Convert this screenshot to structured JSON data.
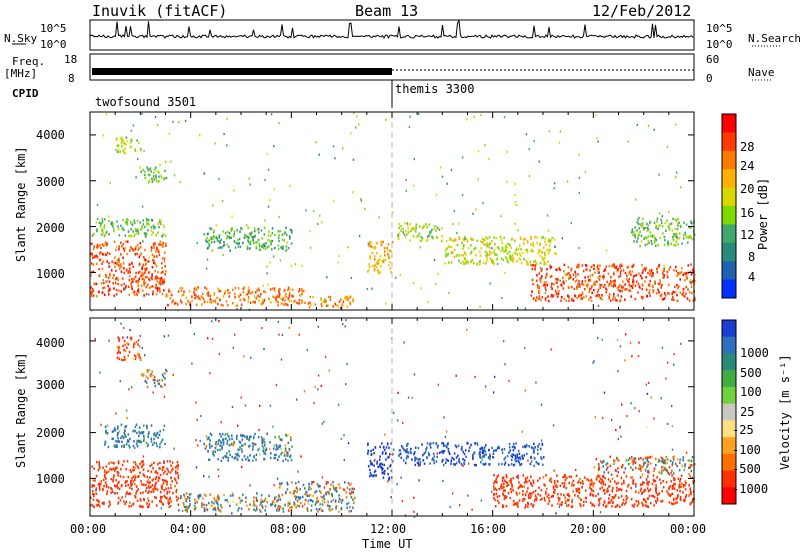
{
  "header": {
    "station": "Inuvik (fitACF)",
    "beam": "Beam 13",
    "date": "12/Feb/2012"
  },
  "panels": {
    "nsky_label": "N.Sky",
    "nsearch_label": "N.Search",
    "nsky_ticks": [
      "10^5",
      "10^0"
    ],
    "nsearch_ticks": [
      "10^5",
      "10^0"
    ],
    "freq_label_1": "Freq.",
    "freq_label_2": "[MHz]",
    "freq_ticks": [
      "18",
      "8"
    ],
    "nave_label": "Nave",
    "nave_ticks": [
      "60",
      "0"
    ],
    "cpid_label": "CPID",
    "cpid_segments": [
      "twofsound 3501",
      "themis 3300"
    ]
  },
  "power_colorbar": {
    "label": "Power [dB]",
    "ticks": [
      "28",
      "24",
      "20",
      "16",
      "12",
      "8",
      "4"
    ],
    "colors": [
      "#ff0000",
      "#ff3a00",
      "#ff7a00",
      "#ffb000",
      "#d8d800",
      "#7fd800",
      "#3fa86a",
      "#2a8a7a",
      "#2060b0",
      "#0030ff"
    ]
  },
  "velocity_colorbar": {
    "label": "Velocity [m s⁻¹]",
    "ticks": [
      "1000",
      "500",
      "100",
      "25",
      "-25",
      "-100",
      "-500",
      "-1000"
    ],
    "colors": [
      "#1a3fd0",
      "#2f6fbf",
      "#2a8a7a",
      "#3fae3f",
      "#6fd040",
      "#c8c8c0",
      "#ffe080",
      "#ffa020",
      "#ff7000",
      "#ff3000",
      "#ff0000"
    ]
  },
  "chart_data": {
    "type": "heatmap",
    "title": "Inuvik (fitACF)  Beam 13  12/Feb/2012",
    "xlabel": "Time UT",
    "ylabel": "Slant Range [km]",
    "x_ticks": [
      "00:00",
      "04:00",
      "08:00",
      "12:00",
      "16:00",
      "20:00",
      "00:00"
    ],
    "y_ticks": [
      "4000",
      "3000",
      "2000",
      "1000"
    ],
    "xlim_hours": [
      0,
      24
    ],
    "ylim_km": [
      180,
      4500
    ],
    "mode_change_hour": 12,
    "panels": [
      {
        "quantity": "Power",
        "units": "dB",
        "range": [
          0,
          30
        ],
        "regions": [
          {
            "t": [
              0.0,
              3.0
            ],
            "r": [
              500,
              1700
            ],
            "level": 26
          },
          {
            "t": [
              3.0,
              8.5
            ],
            "r": [
              300,
              700
            ],
            "level": 24
          },
          {
            "t": [
              8.5,
              10.5
            ],
            "r": [
              250,
              500
            ],
            "level": 22
          },
          {
            "t": [
              0.0,
              3.0
            ],
            "r": [
              1800,
              2200
            ],
            "level": 12
          },
          {
            "t": [
              4.5,
              8.0
            ],
            "r": [
              1500,
              2000
            ],
            "level": 10
          },
          {
            "t": [
              11.0,
              12.0
            ],
            "r": [
              1000,
              1700
            ],
            "level": 20
          },
          {
            "t": [
              12.2,
              14.0
            ],
            "r": [
              1700,
              2100
            ],
            "level": 14
          },
          {
            "t": [
              14.0,
              18.5
            ],
            "r": [
              1200,
              1800
            ],
            "level": 16
          },
          {
            "t": [
              17.5,
              24.0
            ],
            "r": [
              400,
              1200
            ],
            "level": 26
          },
          {
            "t": [
              21.5,
              24.0
            ],
            "r": [
              1600,
              2200
            ],
            "level": 12
          },
          {
            "t": [
              1.0,
              2.0
            ],
            "r": [
              3600,
              4000
            ],
            "level": 14
          },
          {
            "t": [
              2.0,
              3.0
            ],
            "r": [
              3000,
              3400
            ],
            "level": 12
          }
        ]
      },
      {
        "quantity": "Velocity",
        "units": "m s⁻¹",
        "range": [
          -1000,
          1000
        ],
        "regions": [
          {
            "t": [
              0.0,
              3.5
            ],
            "r": [
              400,
              1400
            ],
            "level": -300
          },
          {
            "t": [
              3.5,
              10.5
            ],
            "r": [
              300,
              700
            ],
            "level": 60
          },
          {
            "t": [
              7.5,
              10.5
            ],
            "r": [
              700,
              950
            ],
            "level": 0
          },
          {
            "t": [
              4.5,
              8.0
            ],
            "r": [
              1400,
              2000
            ],
            "level": 150
          },
          {
            "t": [
              11.0,
              12.0
            ],
            "r": [
              1000,
              1800
            ],
            "level": 700
          },
          {
            "t": [
              12.2,
              18.0
            ],
            "r": [
              1300,
              1800
            ],
            "level": 500
          },
          {
            "t": [
              16.0,
              24.0
            ],
            "r": [
              400,
              1100
            ],
            "level": -300
          },
          {
            "t": [
              20.0,
              24.0
            ],
            "r": [
              1100,
              1500
            ],
            "level": 0
          },
          {
            "t": [
              0.5,
              3.0
            ],
            "r": [
              1700,
              2200
            ],
            "level": 200
          },
          {
            "t": [
              1.0,
              2.0
            ],
            "r": [
              3600,
              4100
            ],
            "level": -200
          },
          {
            "t": [
              2.0,
              3.0
            ],
            "r": [
              3000,
              3400
            ],
            "level": 0
          }
        ]
      }
    ]
  }
}
